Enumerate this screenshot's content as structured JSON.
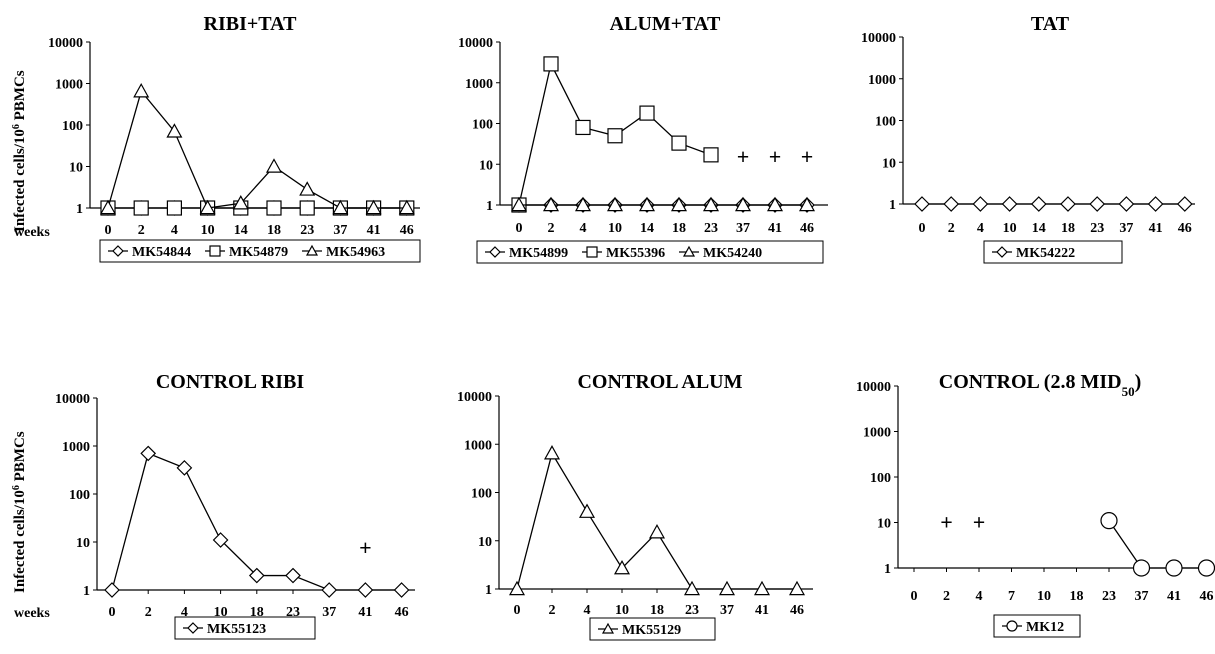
{
  "figure": {
    "ylabel_main": "Infected cells/10",
    "ylabel_sup": "6",
    "ylabel_tail": " PBMCs",
    "weeks_label": "weeks"
  },
  "chart_data": [
    {
      "type": "line",
      "title": "RIBI+TAT",
      "yscale": "log",
      "ylim": [
        1,
        10000
      ],
      "yticks": [
        "1",
        "10",
        "100",
        "1000",
        "10000"
      ],
      "categories": [
        "0",
        "2",
        "4",
        "10",
        "14",
        "18",
        "23",
        "37",
        "41",
        "46"
      ],
      "series": [
        {
          "name": "MK54844",
          "marker": "diamond",
          "values": [
            1,
            1,
            1,
            1,
            1,
            1,
            1,
            1,
            1,
            1
          ]
        },
        {
          "name": "MK54879",
          "marker": "square",
          "values": [
            1,
            1,
            1,
            1,
            1,
            1,
            1,
            1,
            1,
            1
          ]
        },
        {
          "name": "MK54963",
          "marker": "triangle",
          "values": [
            1,
            650,
            70,
            1,
            1.3,
            10,
            2.8,
            1,
            1,
            1
          ]
        }
      ],
      "extra_markers": []
    },
    {
      "type": "line",
      "title": "ALUM+TAT",
      "yscale": "log",
      "ylim": [
        1,
        10000
      ],
      "yticks": [
        "1",
        "10",
        "100",
        "1000",
        "10000"
      ],
      "categories": [
        "0",
        "2",
        "4",
        "10",
        "14",
        "18",
        "23",
        "37",
        "41",
        "46"
      ],
      "series": [
        {
          "name": "MK54899",
          "marker": "diamond",
          "values": [
            1,
            1,
            1,
            1,
            1,
            1,
            1,
            1,
            1,
            1
          ]
        },
        {
          "name": "MK55396",
          "marker": "square",
          "values": [
            1,
            2900,
            80,
            50,
            180,
            33,
            17,
            null,
            null,
            null
          ]
        },
        {
          "name": "MK54240",
          "marker": "triangle",
          "values": [
            1,
            1,
            1,
            1,
            1,
            1,
            1,
            1,
            1,
            1
          ]
        }
      ],
      "extra_markers": [
        {
          "category": "37",
          "value": 15,
          "symbol": "+"
        },
        {
          "category": "41",
          "value": 15,
          "symbol": "+"
        },
        {
          "category": "46",
          "value": 15,
          "symbol": "+"
        }
      ]
    },
    {
      "type": "line",
      "title": "TAT",
      "yscale": "log",
      "ylim": [
        1,
        10000
      ],
      "yticks": [
        "1",
        "10",
        "100",
        "1000",
        "10000"
      ],
      "categories": [
        "0",
        "2",
        "4",
        "10",
        "14",
        "18",
        "23",
        "37",
        "41",
        "46"
      ],
      "series": [
        {
          "name": "MK54222",
          "marker": "diamond",
          "values": [
            1,
            1,
            1,
            1,
            1,
            1,
            1,
            1,
            1,
            1
          ]
        }
      ],
      "extra_markers": []
    },
    {
      "type": "line",
      "title": "CONTROL RIBI",
      "yscale": "log",
      "ylim": [
        1,
        10000
      ],
      "yticks": [
        "1",
        "10",
        "100",
        "1000",
        "10000"
      ],
      "categories": [
        "0",
        "2",
        "4",
        "10",
        "18",
        "23",
        "37",
        "41",
        "46"
      ],
      "series": [
        {
          "name": "MK55123",
          "marker": "diamond",
          "values": [
            1,
            700,
            350,
            11,
            2,
            2,
            1,
            1,
            1
          ]
        }
      ],
      "extra_markers": [
        {
          "category": "41",
          "value": 7.5,
          "symbol": "+"
        }
      ]
    },
    {
      "type": "line",
      "title": "CONTROL ALUM",
      "yscale": "log",
      "ylim": [
        1,
        10000
      ],
      "yticks": [
        "1",
        "10",
        "100",
        "1000",
        "10000"
      ],
      "categories": [
        "0",
        "2",
        "4",
        "10",
        "18",
        "23",
        "37",
        "41",
        "46"
      ],
      "series": [
        {
          "name": "MK55129",
          "marker": "triangle",
          "values": [
            1,
            650,
            40,
            2.7,
            15,
            1,
            1,
            1,
            1
          ]
        }
      ],
      "extra_markers": []
    },
    {
      "type": "line",
      "title": "CONTROL (2.8 MID",
      "title_sub": "50",
      "title_end": ")",
      "yscale": "log",
      "ylim": [
        1,
        10000
      ],
      "yticks": [
        "1",
        "10",
        "100",
        "1000",
        "10000"
      ],
      "categories": [
        "0",
        "2",
        "4",
        "7",
        "10",
        "18",
        "23",
        "37",
        "41",
        "46"
      ],
      "series": [
        {
          "name": "MK12",
          "marker": "circle",
          "values": [
            null,
            null,
            null,
            null,
            null,
            null,
            11,
            1,
            1,
            1
          ]
        }
      ],
      "extra_markers": [
        {
          "category": "2",
          "value": 10,
          "symbol": "+"
        },
        {
          "category": "4",
          "value": 10,
          "symbol": "+"
        }
      ]
    }
  ]
}
